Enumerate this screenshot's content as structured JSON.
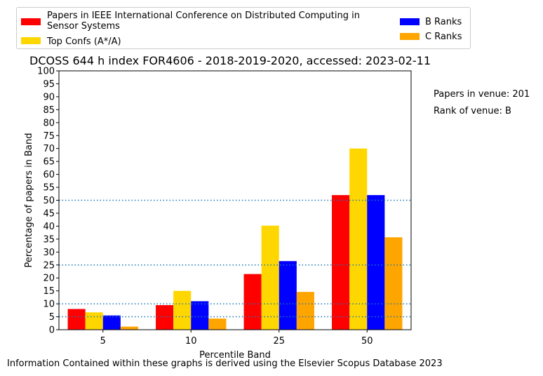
{
  "chart_data": {
    "type": "bar",
    "title": "DCOSS 644 h index FOR4606 - 2018-2019-2020, accessed: 2023-02-11",
    "xlabel": "Percentile Band",
    "ylabel": "Percentage of papers in Band",
    "categories": [
      "5",
      "10",
      "25",
      "50"
    ],
    "ylim": [
      0,
      100
    ],
    "yticks": [
      0,
      5,
      10,
      15,
      20,
      25,
      30,
      35,
      40,
      45,
      50,
      55,
      60,
      65,
      70,
      75,
      80,
      85,
      90,
      95,
      100
    ],
    "reference_lines": [
      5,
      10,
      25,
      50
    ],
    "series": [
      {
        "name": "Papers in IEEE International Conference on Distributed Computing in Sensor Systems",
        "color": "#ff0000",
        "values": [
          8,
          9.5,
          21.5,
          52
        ]
      },
      {
        "name": "Top Confs (A*/A)",
        "color": "#ffd700",
        "values": [
          6.7,
          15,
          40.2,
          70
        ]
      },
      {
        "name": "B Ranks",
        "color": "#0000ff",
        "values": [
          5.5,
          11,
          26.5,
          52
        ]
      },
      {
        "name": "C Ranks",
        "color": "#ffa500",
        "values": [
          1.2,
          4.3,
          14.6,
          35.7
        ]
      }
    ],
    "legend": {
      "placement": "top",
      "labels": {
        "red": "Papers in IEEE International Conference on Distributed Computing in Sensor Systems",
        "gold": "Top Confs (A*/A)",
        "blue": "B Ranks",
        "orange": "C Ranks"
      }
    },
    "grid": false
  },
  "notes": {
    "papers_in_venue": "Papers in venue: 201",
    "rank_of_venue": "Rank of venue: B"
  },
  "footer": "Information Contained within these graphs is derived using the Elsevier Scopus Database 2023"
}
